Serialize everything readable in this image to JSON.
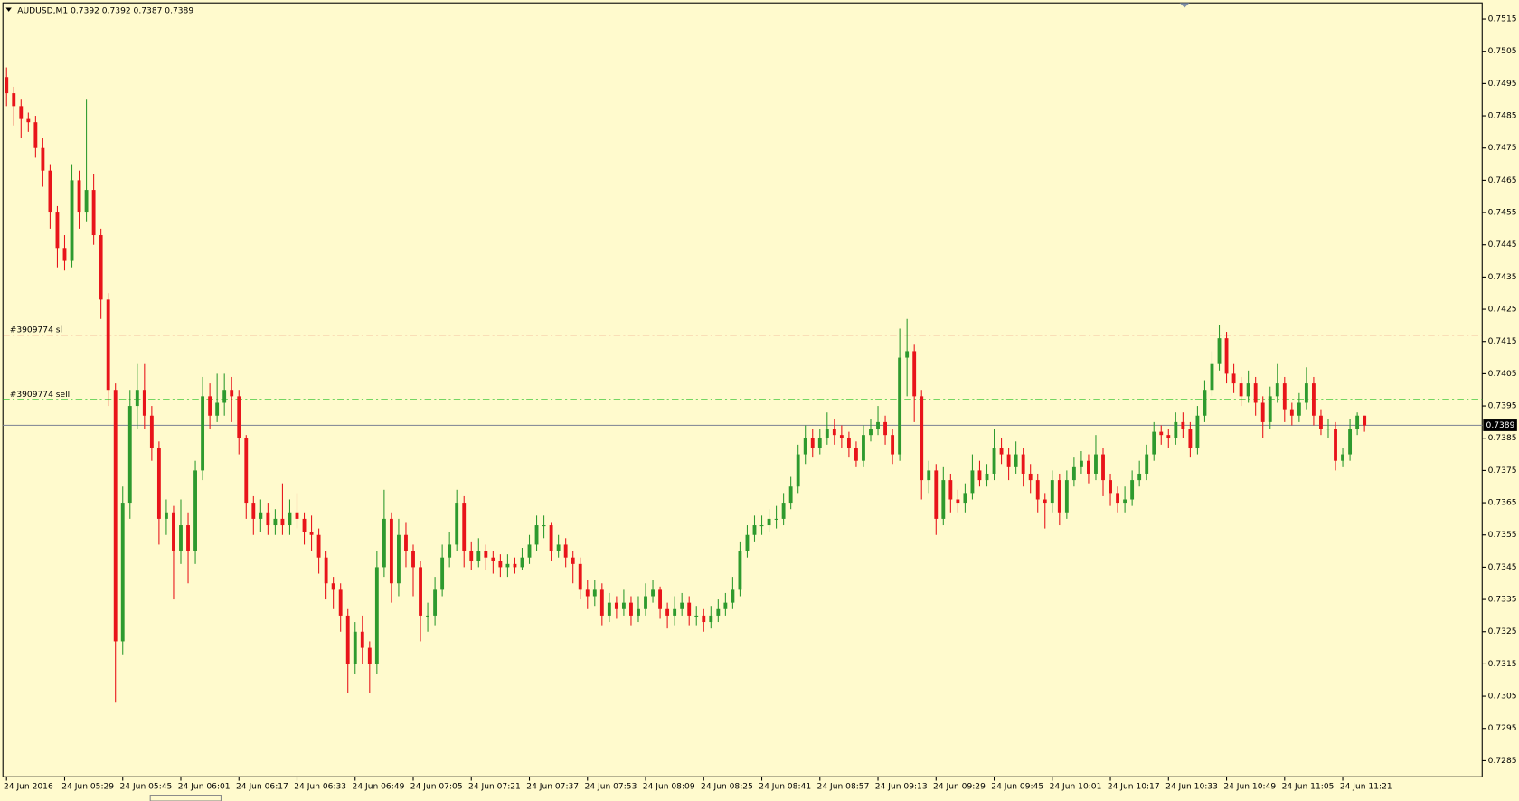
{
  "chart_data": {
    "type": "candlestick",
    "title": "AUDUSD,M1  0.7392 0.7392 0.7387 0.7389",
    "up_color": "#2e9a2e",
    "down_color": "#e8141a",
    "background": "#fffacd",
    "open": [
      0.7497,
      0.7492,
      0.7488,
      0.7484,
      0.7483,
      0.7475,
      0.7468,
      0.7455,
      0.7444,
      0.744,
      0.7465,
      0.7455,
      0.7462,
      0.7448,
      0.7428,
      0.74,
      0.7322,
      0.7365,
      0.7395,
      0.74,
      0.7392,
      0.7382,
      0.736,
      0.7362,
      0.735,
      0.7358,
      0.735,
      0.7375,
      0.7398,
      0.7392,
      0.7396,
      0.74,
      0.7398,
      0.7385,
      0.7365,
      0.736,
      0.7362,
      0.7358,
      0.736,
      0.7358,
      0.7362,
      0.736,
      0.7356,
      0.7355,
      0.7348,
      0.734,
      0.7338,
      0.733,
      0.7315,
      0.7325,
      0.732,
      0.7315,
      0.7345,
      0.736,
      0.734,
      0.7355,
      0.735,
      0.7345,
      0.733,
      0.733,
      0.7338,
      0.7348,
      0.7352,
      0.7365,
      0.735,
      0.7347,
      0.735,
      0.7348,
      0.7347,
      0.7345,
      0.7346,
      0.7345,
      0.7348,
      0.7352,
      0.7358,
      0.7358,
      0.735,
      0.7352,
      0.7348,
      0.7346,
      0.7338,
      0.7336,
      0.7338,
      0.733,
      0.7334,
      0.7332,
      0.7334,
      0.733,
      0.7332,
      0.7336,
      0.7338,
      0.7332,
      0.733,
      0.7332,
      0.7334,
      0.733,
      0.733,
      0.7328,
      0.733,
      0.7332,
      0.7334,
      0.7338,
      0.735,
      0.7355,
      0.7358,
      0.7358,
      0.736,
      0.736,
      0.7365,
      0.737,
      0.738,
      0.7385,
      0.7382,
      0.7385,
      0.7388,
      0.7386,
      0.7385,
      0.7382,
      0.7378,
      0.7386,
      0.7388,
      0.739,
      0.7386,
      0.738,
      0.741,
      0.7412,
      0.7398,
      0.7372,
      0.7375,
      0.736,
      0.7372,
      0.7366,
      0.7365,
      0.7368,
      0.7375,
      0.7372,
      0.7374,
      0.7382,
      0.738,
      0.7376,
      0.738,
      0.7374,
      0.7372,
      0.7366,
      0.7365,
      0.7372,
      0.7362,
      0.7372,
      0.7376,
      0.7378,
      0.7374,
      0.738,
      0.7372,
      0.7368,
      0.7365,
      0.7366,
      0.7372,
      0.7374,
      0.738,
      0.7387,
      0.7386,
      0.7385,
      0.739,
      0.7388,
      0.7382,
      0.7392,
      0.74,
      0.7408,
      0.7416,
      0.7405,
      0.7402,
      0.7398,
      0.7402,
      0.7396,
      0.739,
      0.7398,
      0.7402,
      0.7394,
      0.7392,
      0.7396,
      0.7402,
      0.7392,
      0.7388,
      0.7388,
      0.7378,
      0.738,
      0.7388,
      0.7392
    ],
    "high": [
      0.75,
      0.7494,
      0.749,
      0.7486,
      0.7485,
      0.7478,
      0.747,
      0.7457,
      0.7448,
      0.747,
      0.7468,
      0.749,
      0.7467,
      0.745,
      0.743,
      0.7402,
      0.737,
      0.74,
      0.7408,
      0.7408,
      0.7395,
      0.7384,
      0.7366,
      0.7364,
      0.7366,
      0.7362,
      0.7378,
      0.7404,
      0.7402,
      0.7405,
      0.7405,
      0.7404,
      0.74,
      0.7386,
      0.7367,
      0.7366,
      0.7365,
      0.7363,
      0.7371,
      0.7366,
      0.7368,
      0.7362,
      0.7361,
      0.7357,
      0.735,
      0.7342,
      0.734,
      0.7332,
      0.7328,
      0.733,
      0.7322,
      0.735,
      0.7369,
      0.7362,
      0.736,
      0.7359,
      0.7352,
      0.7347,
      0.7334,
      0.7342,
      0.7352,
      0.7356,
      0.7369,
      0.7367,
      0.7353,
      0.7354,
      0.7352,
      0.735,
      0.7349,
      0.7349,
      0.7348,
      0.7351,
      0.7355,
      0.7361,
      0.7361,
      0.7359,
      0.7355,
      0.7354,
      0.735,
      0.7348,
      0.7341,
      0.7341,
      0.734,
      0.7337,
      0.7336,
      0.7338,
      0.7336,
      0.7336,
      0.734,
      0.7341,
      0.7339,
      0.7334,
      0.7336,
      0.7337,
      0.7336,
      0.7333,
      0.7332,
      0.7333,
      0.7335,
      0.7337,
      0.7342,
      0.7353,
      0.7358,
      0.7361,
      0.7361,
      0.7363,
      0.7364,
      0.7368,
      0.7373,
      0.7383,
      0.7389,
      0.7388,
      0.7388,
      0.7393,
      0.7391,
      0.7389,
      0.7387,
      0.7384,
      0.7389,
      0.7391,
      0.7395,
      0.7392,
      0.7388,
      0.7419,
      0.7422,
      0.7414,
      0.74,
      0.7378,
      0.7377,
      0.7376,
      0.7374,
      0.7369,
      0.7371,
      0.738,
      0.7378,
      0.7377,
      0.7388,
      0.7385,
      0.7382,
      0.7384,
      0.7382,
      0.7377,
      0.7374,
      0.7368,
      0.7375,
      0.7374,
      0.7375,
      0.7379,
      0.7381,
      0.738,
      0.7386,
      0.7382,
      0.7374,
      0.737,
      0.737,
      0.7375,
      0.7378,
      0.7383,
      0.739,
      0.7389,
      0.7388,
      0.7393,
      0.7393,
      0.739,
      0.7395,
      0.7403,
      0.7412,
      0.742,
      0.7418,
      0.7408,
      0.7404,
      0.7406,
      0.7404,
      0.7398,
      0.7401,
      0.7408,
      0.7404,
      0.7396,
      0.7399,
      0.7407,
      0.7404,
      0.7394,
      0.7391,
      0.739,
      0.7382,
      0.7391,
      0.7393,
      0.7392
    ],
    "low": [
      0.7488,
      0.7482,
      0.7478,
      0.748,
      0.7472,
      0.7463,
      0.745,
      0.7438,
      0.7437,
      0.7438,
      0.745,
      0.7452,
      0.7445,
      0.7422,
      0.7395,
      0.7303,
      0.7318,
      0.736,
      0.7388,
      0.7388,
      0.7378,
      0.7352,
      0.7355,
      0.7335,
      0.7346,
      0.734,
      0.7346,
      0.7372,
      0.7388,
      0.739,
      0.7392,
      0.739,
      0.738,
      0.736,
      0.7355,
      0.7356,
      0.7355,
      0.7355,
      0.7355,
      0.7355,
      0.7357,
      0.7352,
      0.735,
      0.7343,
      0.7335,
      0.7332,
      0.7325,
      0.7306,
      0.7312,
      0.7315,
      0.7306,
      0.7312,
      0.7342,
      0.7334,
      0.7336,
      0.7345,
      0.7336,
      0.7322,
      0.7325,
      0.7327,
      0.7336,
      0.7345,
      0.735,
      0.7345,
      0.7344,
      0.7345,
      0.7344,
      0.7343,
      0.7342,
      0.7342,
      0.7343,
      0.7344,
      0.7346,
      0.735,
      0.7354,
      0.7347,
      0.7348,
      0.7345,
      0.734,
      0.7335,
      0.7332,
      0.7333,
      0.7327,
      0.7328,
      0.7329,
      0.733,
      0.7327,
      0.7328,
      0.733,
      0.7334,
      0.7329,
      0.7326,
      0.7327,
      0.733,
      0.7327,
      0.7327,
      0.7325,
      0.7326,
      0.7328,
      0.733,
      0.7332,
      0.7336,
      0.7348,
      0.7353,
      0.7355,
      0.7356,
      0.7357,
      0.7358,
      0.7363,
      0.7368,
      0.7377,
      0.7379,
      0.738,
      0.7383,
      0.7383,
      0.7382,
      0.7379,
      0.7376,
      0.7376,
      0.7384,
      0.7386,
      0.7383,
      0.7377,
      0.7378,
      0.7398,
      0.739,
      0.7366,
      0.7368,
      0.7355,
      0.7358,
      0.7362,
      0.7362,
      0.7362,
      0.7366,
      0.737,
      0.737,
      0.7372,
      0.7377,
      0.7372,
      0.7374,
      0.737,
      0.7368,
      0.7362,
      0.7357,
      0.7362,
      0.7358,
      0.736,
      0.737,
      0.7374,
      0.7371,
      0.7372,
      0.7367,
      0.7364,
      0.7362,
      0.7362,
      0.7364,
      0.737,
      0.7372,
      0.7378,
      0.7383,
      0.7382,
      0.7383,
      0.7385,
      0.7379,
      0.738,
      0.739,
      0.7398,
      0.7406,
      0.7402,
      0.7399,
      0.7395,
      0.7396,
      0.7392,
      0.7385,
      0.7388,
      0.7396,
      0.739,
      0.7389,
      0.739,
      0.7394,
      0.7389,
      0.7386,
      0.7385,
      0.7375,
      0.7376,
      0.7378,
      0.7386,
      0.7387
    ],
    "close": [
      0.7492,
      0.7488,
      0.7484,
      0.7483,
      0.7475,
      0.7468,
      0.7455,
      0.7444,
      0.744,
      0.7465,
      0.7455,
      0.7462,
      0.7448,
      0.7428,
      0.74,
      0.7322,
      0.7365,
      0.7395,
      0.74,
      0.7392,
      0.7382,
      0.736,
      0.7362,
      0.735,
      0.7358,
      0.735,
      0.7375,
      0.7398,
      0.7392,
      0.7396,
      0.74,
      0.7398,
      0.7385,
      0.7365,
      0.736,
      0.7362,
      0.7358,
      0.736,
      0.7358,
      0.7362,
      0.736,
      0.7356,
      0.7355,
      0.7348,
      0.734,
      0.7338,
      0.733,
      0.7315,
      0.7325,
      0.732,
      0.7315,
      0.7345,
      0.736,
      0.734,
      0.7355,
      0.735,
      0.7345,
      0.733,
      0.733,
      0.7338,
      0.7348,
      0.7352,
      0.7365,
      0.735,
      0.7347,
      0.735,
      0.7348,
      0.7347,
      0.7345,
      0.7346,
      0.7345,
      0.7348,
      0.7352,
      0.7358,
      0.7358,
      0.735,
      0.7352,
      0.7348,
      0.7346,
      0.7338,
      0.7336,
      0.7338,
      0.733,
      0.7334,
      0.7332,
      0.7334,
      0.733,
      0.7332,
      0.7336,
      0.7338,
      0.7332,
      0.733,
      0.7332,
      0.7334,
      0.733,
      0.733,
      0.7328,
      0.733,
      0.7332,
      0.7334,
      0.7338,
      0.735,
      0.7355,
      0.7358,
      0.7358,
      0.736,
      0.736,
      0.7365,
      0.737,
      0.738,
      0.7385,
      0.7382,
      0.7385,
      0.7388,
      0.7386,
      0.7385,
      0.7382,
      0.7378,
      0.7386,
      0.7388,
      0.739,
      0.7386,
      0.738,
      0.741,
      0.7412,
      0.7398,
      0.7372,
      0.7375,
      0.736,
      0.7372,
      0.7366,
      0.7365,
      0.7368,
      0.7375,
      0.7372,
      0.7374,
      0.7382,
      0.738,
      0.7376,
      0.738,
      0.7374,
      0.7372,
      0.7366,
      0.7365,
      0.7372,
      0.7362,
      0.7372,
      0.7376,
      0.7378,
      0.7374,
      0.738,
      0.7372,
      0.7368,
      0.7365,
      0.7366,
      0.7372,
      0.7374,
      0.738,
      0.7387,
      0.7386,
      0.7385,
      0.739,
      0.7388,
      0.7382,
      0.7392,
      0.74,
      0.7408,
      0.7416,
      0.7405,
      0.7402,
      0.7398,
      0.7402,
      0.7396,
      0.739,
      0.7398,
      0.7402,
      0.7394,
      0.7392,
      0.7396,
      0.7402,
      0.7392,
      0.7388,
      0.7388,
      0.7378,
      0.738,
      0.7388,
      0.7392,
      0.7389
    ],
    "xlim": [
      -0.5,
      203.2
    ],
    "xticks": [
      {
        "value": 0,
        "label": "24 Jun 2016"
      },
      {
        "value": 8,
        "label": "24 Jun 05:29"
      },
      {
        "value": 16,
        "label": "24 Jun 05:45"
      },
      {
        "value": 24,
        "label": "24 Jun 06:01"
      },
      {
        "value": 32,
        "label": "24 Jun 06:17"
      },
      {
        "value": 40,
        "label": "24 Jun 06:33"
      },
      {
        "value": 48,
        "label": "24 Jun 06:49"
      },
      {
        "value": 56,
        "label": "24 Jun 07:05"
      },
      {
        "value": 64,
        "label": "24 Jun 07:21"
      },
      {
        "value": 72,
        "label": "24 Jun 07:37"
      },
      {
        "value": 80,
        "label": "24 Jun 07:53"
      },
      {
        "value": 88,
        "label": "24 Jun 08:09"
      },
      {
        "value": 96,
        "label": "24 Jun 08:25"
      },
      {
        "value": 104,
        "label": "24 Jun 08:41"
      },
      {
        "value": 112,
        "label": "24 Jun 08:57"
      },
      {
        "value": 120,
        "label": "24 Jun 09:13"
      },
      {
        "value": 128,
        "label": "24 Jun 09:29"
      },
      {
        "value": 136,
        "label": "24 Jun 09:45"
      },
      {
        "value": 144,
        "label": "24 Jun 10:01"
      },
      {
        "value": 152,
        "label": "24 Jun 10:17"
      },
      {
        "value": 160,
        "label": "24 Jun 10:33"
      },
      {
        "value": 168,
        "label": "24 Jun 10:49"
      },
      {
        "value": 176,
        "label": "24 Jun 11:05"
      },
      {
        "value": 184,
        "label": "24 Jun 11:21"
      }
    ],
    "ylim": [
      0.728,
      0.752
    ],
    "yticks": [
      0.7515,
      0.7505,
      0.7495,
      0.7485,
      0.7475,
      0.7465,
      0.7455,
      0.7445,
      0.7435,
      0.7425,
      0.7415,
      0.7405,
      0.7395,
      0.7385,
      0.7375,
      0.7365,
      0.7355,
      0.7345,
      0.7335,
      0.7325,
      0.7315,
      0.7305,
      0.7295,
      0.7285
    ],
    "levels": [
      {
        "label": "#3909774 sl",
        "value": 0.7417,
        "color": "#d42020"
      },
      {
        "label": "#3909774 sell",
        "value": 0.7397,
        "color": "#22c022"
      }
    ],
    "last_price": 0.7389
  }
}
